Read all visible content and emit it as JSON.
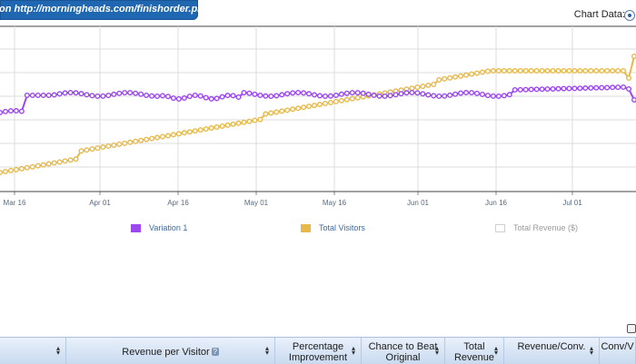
{
  "goal_tab": {
    "text": "on http://morningheads.com/finishorder.php"
  },
  "chart_controls": {
    "label": "Chart Data:"
  },
  "chart_data": {
    "type": "line",
    "x_ticks": [
      "Mar 16",
      "Apr 01",
      "Apr 16",
      "May 01",
      "May 16",
      "Jun 01",
      "Jun 16",
      "Jul 01"
    ],
    "series": [
      {
        "name": "Variation 1",
        "color": "#9b48f0",
        "visible": true
      },
      {
        "name": "Total Visitors",
        "color": "#e7b94a",
        "visible": true
      },
      {
        "name": "Total Revenue ($)",
        "color": "#d6d6d6",
        "visible": false
      }
    ],
    "grid": true,
    "legend_placement": "bottom"
  },
  "table": {
    "headers": [
      {
        "label": "",
        "has_sort": true
      },
      {
        "label": "Revenue per Visitor",
        "has_help": true,
        "has_sort": true
      },
      {
        "label": "Percentage Improvement",
        "has_sort": true
      },
      {
        "label": "Chance to Beat Original",
        "has_sort": true
      },
      {
        "label": "Total Revenue",
        "has_sort": true
      },
      {
        "label": "Revenue/Conv.",
        "has_sort": true
      },
      {
        "label": "Conv/V",
        "has_sort": false
      }
    ]
  },
  "icons": {
    "help": "?",
    "sort": "▴▾"
  }
}
